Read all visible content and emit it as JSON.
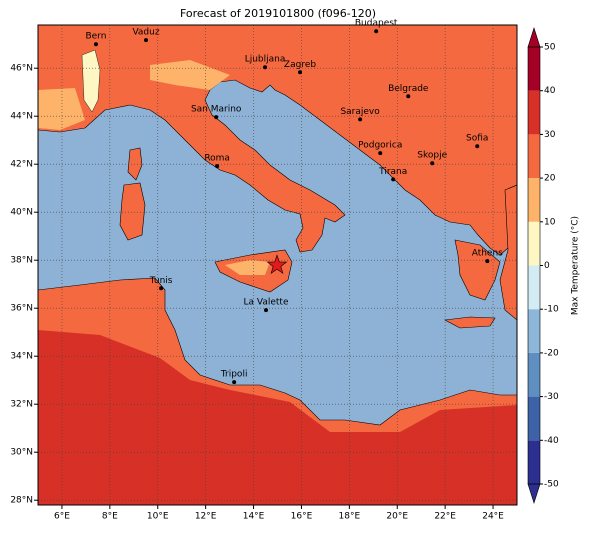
{
  "title": "Forecast of 2019101800 (f096-120)",
  "map": {
    "xlim": [
      5,
      25
    ],
    "ylim": [
      27.8,
      47.8
    ],
    "xticks": [
      {
        "value": 6,
        "label": "6°E"
      },
      {
        "value": 8,
        "label": "8°E"
      },
      {
        "value": 10,
        "label": "10°E"
      },
      {
        "value": 12,
        "label": "12°E"
      },
      {
        "value": 14,
        "label": "14°E"
      },
      {
        "value": 16,
        "label": "16°E"
      },
      {
        "value": 18,
        "label": "18°E"
      },
      {
        "value": 20,
        "label": "20°E"
      },
      {
        "value": 22,
        "label": "22°E"
      },
      {
        "value": 24,
        "label": "24°E"
      }
    ],
    "yticks": [
      {
        "value": 28,
        "label": "28°N"
      },
      {
        "value": 30,
        "label": "30°N"
      },
      {
        "value": 32,
        "label": "32°N"
      },
      {
        "value": 34,
        "label": "34°N"
      },
      {
        "value": 36,
        "label": "36°N"
      },
      {
        "value": 38,
        "label": "38°N"
      },
      {
        "value": 40,
        "label": "40°N"
      },
      {
        "value": 42,
        "label": "42°N"
      },
      {
        "value": 44,
        "label": "44°N"
      },
      {
        "value": 46,
        "label": "46°N"
      }
    ],
    "cities": [
      {
        "name": "Bern",
        "lon": 7.42,
        "lat": 47.0
      },
      {
        "name": "Vaduz",
        "lon": 9.51,
        "lat": 47.17
      },
      {
        "name": "Budapest",
        "lon": 19.12,
        "lat": 47.54
      },
      {
        "name": "Ljubljana",
        "lon": 14.48,
        "lat": 46.04
      },
      {
        "name": "Zagreb",
        "lon": 15.94,
        "lat": 45.83
      },
      {
        "name": "Belgrade",
        "lon": 20.46,
        "lat": 44.83
      },
      {
        "name": "San Marino",
        "lon": 12.44,
        "lat": 43.96
      },
      {
        "name": "Sarajevo",
        "lon": 18.45,
        "lat": 43.87
      },
      {
        "name": "Sofia",
        "lon": 23.34,
        "lat": 42.75
      },
      {
        "name": "Roma",
        "lon": 12.48,
        "lat": 41.92
      },
      {
        "name": "Podgorica",
        "lon": 19.29,
        "lat": 42.46
      },
      {
        "name": "Skopje",
        "lon": 21.46,
        "lat": 42.04
      },
      {
        "name": "Tirana",
        "lon": 19.83,
        "lat": 41.37
      },
      {
        "name": "Athens",
        "lon": 23.76,
        "lat": 37.96
      },
      {
        "name": "Tunis",
        "lon": 10.14,
        "lat": 36.83
      },
      {
        "name": "La Valette",
        "lon": 14.52,
        "lat": 35.92
      },
      {
        "name": "Tripoli",
        "lon": 13.19,
        "lat": 32.92
      }
    ],
    "marker": {
      "lon": 14.98,
      "lat": 37.79,
      "color": "#e31a1c"
    }
  },
  "colorbar": {
    "label": "Max Temperature (°C)",
    "ticks": [
      -50,
      -40,
      -30,
      -20,
      -10,
      0,
      10,
      20,
      30,
      40,
      50
    ],
    "colors": [
      "#2c2f8f",
      "#3d62a8",
      "#5e8fc0",
      "#8eb6d8",
      "#d3ebf2",
      "#fef7c4",
      "#fdb36a",
      "#f4693f",
      "#d73027",
      "#a50026"
    ]
  }
}
